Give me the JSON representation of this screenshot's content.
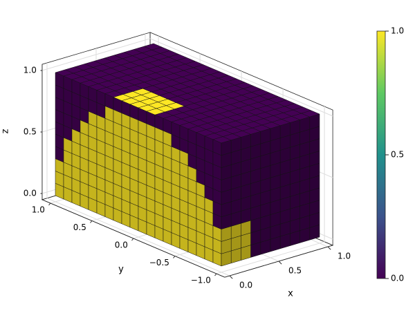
{
  "chart_data": {
    "type": "voxel",
    "xlabel": "x",
    "ylabel": "y",
    "zlabel": "z",
    "xlim": [
      0,
      1
    ],
    "ylim": [
      -1,
      1
    ],
    "zlim": [
      0,
      1
    ],
    "xticks": [
      {
        "value": 0,
        "label": "0.0"
      },
      {
        "value": 0.5,
        "label": "0.5"
      },
      {
        "value": 1,
        "label": "1.0"
      }
    ],
    "yticks": [
      {
        "value": 1,
        "label": "1.0"
      },
      {
        "value": 0.5,
        "label": "0.5"
      },
      {
        "value": 0,
        "label": "0.0"
      },
      {
        "value": -0.5,
        "label": "−0.5"
      },
      {
        "value": -1,
        "label": "−1.0"
      }
    ],
    "zticks": [
      {
        "value": 0,
        "label": "0.0"
      },
      {
        "value": 0.5,
        "label": "0.5"
      },
      {
        "value": 1,
        "label": "1.0"
      }
    ],
    "grid": true,
    "colormap": [
      "#440154",
      "#3b528b",
      "#21918c",
      "#5ec962",
      "#fde725"
    ],
    "colorbar": {
      "lim": [
        0,
        1
      ],
      "ticks": [
        {
          "value": 0,
          "label": "0.0"
        },
        {
          "value": 0.5,
          "label": "0.5"
        },
        {
          "value": 1,
          "label": "1.0"
        }
      ]
    },
    "faces": {
      "front": [
        [
          1,
          1,
          1,
          1,
          1,
          1,
          1,
          1,
          1,
          1,
          1,
          1,
          1,
          1,
          1,
          1,
          1,
          1,
          1,
          1
        ],
        [
          1,
          1,
          1,
          1,
          1,
          1,
          1,
          1,
          1,
          1,
          1,
          1,
          1,
          1,
          1,
          1,
          1,
          1,
          1,
          1
        ],
        [
          1,
          1,
          1,
          1,
          1,
          1,
          1,
          1,
          1,
          1,
          1,
          1,
          1,
          1,
          1,
          1,
          1,
          1,
          1,
          1
        ],
        [
          0,
          1,
          1,
          1,
          1,
          1,
          1,
          1,
          1,
          1,
          1,
          1,
          1,
          1,
          1,
          1,
          1,
          1,
          1,
          0
        ],
        [
          0,
          1,
          1,
          1,
          1,
          1,
          1,
          1,
          1,
          1,
          1,
          1,
          1,
          1,
          1,
          1,
          1,
          1,
          1,
          0
        ],
        [
          0,
          0,
          1,
          1,
          1,
          1,
          1,
          1,
          1,
          1,
          1,
          1,
          1,
          1,
          1,
          1,
          1,
          1,
          0,
          0
        ],
        [
          0,
          0,
          0,
          1,
          1,
          1,
          1,
          1,
          1,
          1,
          1,
          1,
          1,
          1,
          1,
          1,
          1,
          0,
          0,
          0
        ],
        [
          0,
          0,
          0,
          0,
          1,
          1,
          1,
          1,
          1,
          1,
          1,
          1,
          1,
          1,
          1,
          1,
          0,
          0,
          0,
          0
        ],
        [
          0,
          0,
          0,
          0,
          0,
          0,
          1,
          1,
          1,
          1,
          1,
          1,
          1,
          1,
          0,
          0,
          0,
          0,
          0,
          0
        ],
        [
          0,
          0,
          0,
          0,
          0,
          0,
          0,
          0,
          0,
          0,
          0,
          0,
          0,
          0,
          0,
          0,
          0,
          0,
          0,
          0
        ]
      ],
      "side": [
        [
          1,
          1,
          1,
          0,
          0,
          0,
          0,
          0,
          0,
          0
        ],
        [
          1,
          1,
          1,
          0,
          0,
          0,
          0,
          0,
          0,
          0
        ],
        [
          1,
          1,
          1,
          0,
          0,
          0,
          0,
          0,
          0,
          0
        ],
        [
          0,
          0,
          0,
          0,
          0,
          0,
          0,
          0,
          0,
          0
        ],
        [
          0,
          0,
          0,
          0,
          0,
          0,
          0,
          0,
          0,
          0
        ],
        [
          0,
          0,
          0,
          0,
          0,
          0,
          0,
          0,
          0,
          0
        ],
        [
          0,
          0,
          0,
          0,
          0,
          0,
          0,
          0,
          0,
          0
        ],
        [
          0,
          0,
          0,
          0,
          0,
          0,
          0,
          0,
          0,
          0
        ],
        [
          0,
          0,
          0,
          0,
          0,
          0,
          0,
          0,
          0,
          0
        ],
        [
          0,
          0,
          0,
          0,
          0,
          0,
          0,
          0,
          0,
          0
        ]
      ],
      "top": [
        [
          0,
          0,
          0,
          0,
          0,
          0,
          0,
          1,
          1,
          1,
          1,
          1,
          0,
          0,
          0,
          0,
          0,
          0,
          0,
          0
        ],
        [
          0,
          0,
          0,
          0,
          0,
          0,
          0,
          1,
          1,
          1,
          1,
          1,
          0,
          0,
          0,
          0,
          0,
          0,
          0,
          0
        ],
        [
          0,
          0,
          0,
          0,
          0,
          0,
          0,
          1,
          1,
          1,
          1,
          1,
          0,
          0,
          0,
          0,
          0,
          0,
          0,
          0
        ],
        [
          0,
          0,
          0,
          0,
          0,
          0,
          0,
          0,
          0,
          0,
          0,
          0,
          0,
          0,
          0,
          0,
          0,
          0,
          0,
          0
        ],
        [
          0,
          0,
          0,
          0,
          0,
          0,
          0,
          0,
          0,
          0,
          0,
          0,
          0,
          0,
          0,
          0,
          0,
          0,
          0,
          0
        ],
        [
          0,
          0,
          0,
          0,
          0,
          0,
          0,
          0,
          0,
          0,
          0,
          0,
          0,
          0,
          0,
          0,
          0,
          0,
          0,
          0
        ],
        [
          0,
          0,
          0,
          0,
          0,
          0,
          0,
          0,
          0,
          0,
          0,
          0,
          0,
          0,
          0,
          0,
          0,
          0,
          0,
          0
        ],
        [
          0,
          0,
          0,
          0,
          0,
          0,
          0,
          0,
          0,
          0,
          0,
          0,
          0,
          0,
          0,
          0,
          0,
          0,
          0,
          0
        ],
        [
          0,
          0,
          0,
          0,
          0,
          0,
          0,
          0,
          0,
          0,
          0,
          0,
          0,
          0,
          0,
          0,
          0,
          0,
          0,
          0
        ],
        [
          0,
          0,
          0,
          0,
          0,
          0,
          0,
          0,
          0,
          0,
          0,
          0,
          0,
          0,
          0,
          0,
          0,
          0,
          0,
          0
        ]
      ]
    }
  }
}
